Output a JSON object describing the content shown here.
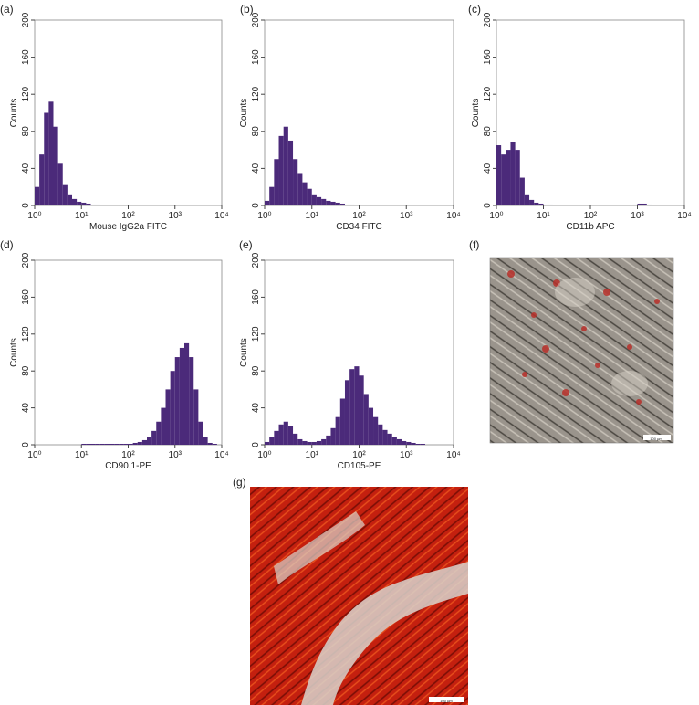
{
  "chart_data": [
    {
      "type": "histogram",
      "label": "(a)",
      "xlabel": "Mouse IgG2a FITC",
      "ylabel": "Counts",
      "color": "#4b2a7a",
      "xscale": "log",
      "xlim": [
        1,
        10000
      ],
      "ylim": [
        0,
        200
      ],
      "xticks": [
        {
          "value": 1,
          "label": "10⁰"
        },
        {
          "value": 10,
          "label": "10¹"
        },
        {
          "value": 100,
          "label": "10²"
        },
        {
          "value": 1000,
          "label": "10³"
        },
        {
          "value": 10000,
          "label": "10⁴"
        }
      ],
      "yticks": [
        0,
        40,
        80,
        120,
        160,
        200
      ],
      "bins": [
        1,
        1.259,
        1.585,
        1.995,
        2.512,
        3.162,
        3.981,
        5.012,
        6.31,
        7.943,
        10,
        12.59,
        15.85,
        19.95,
        25.12,
        31.62,
        39.81,
        50.12,
        63.1,
        79.43,
        100,
        125.9,
        158.5,
        199.5,
        251.2,
        316.2,
        398.1,
        501.2,
        631,
        794.3,
        1000,
        1259,
        1585,
        1995,
        2512,
        3162,
        3981,
        5012,
        6310,
        7943,
        10000
      ],
      "values": [
        20,
        55,
        100,
        112,
        85,
        45,
        22,
        12,
        7,
        4,
        3,
        2,
        1,
        1,
        0,
        0,
        0,
        0,
        0,
        0,
        0,
        0,
        0,
        0,
        0,
        0,
        0,
        0,
        0,
        0,
        0,
        0,
        0,
        0,
        0,
        0,
        0,
        0,
        0,
        0
      ]
    },
    {
      "type": "histogram",
      "label": "(b)",
      "xlabel": "CD34 FITC",
      "ylabel": "Counts",
      "color": "#4b2a7a",
      "xscale": "log",
      "xlim": [
        1,
        10000
      ],
      "ylim": [
        0,
        200
      ],
      "xticks": [
        {
          "value": 1,
          "label": "10⁰"
        },
        {
          "value": 10,
          "label": "10¹"
        },
        {
          "value": 100,
          "label": "10²"
        },
        {
          "value": 1000,
          "label": "10³"
        },
        {
          "value": 10000,
          "label": "10⁴"
        }
      ],
      "yticks": [
        0,
        40,
        80,
        120,
        160,
        200
      ],
      "bins": [
        1,
        1.259,
        1.585,
        1.995,
        2.512,
        3.162,
        3.981,
        5.012,
        6.31,
        7.943,
        10,
        12.59,
        15.85,
        19.95,
        25.12,
        31.62,
        39.81,
        50.12,
        63.1,
        79.43,
        100,
        125.9,
        158.5,
        199.5,
        251.2,
        316.2,
        398.1,
        501.2,
        631,
        794.3,
        1000,
        1259,
        1585,
        1995,
        2512,
        3162,
        3981,
        5012,
        6310,
        7943,
        10000
      ],
      "values": [
        5,
        20,
        50,
        75,
        85,
        70,
        50,
        35,
        25,
        18,
        12,
        9,
        7,
        5,
        4,
        3,
        2,
        1,
        1,
        0,
        0,
        0,
        0,
        0,
        0,
        0,
        0,
        0,
        0,
        0,
        0,
        0,
        0,
        0,
        0,
        0,
        0,
        0,
        0,
        0
      ]
    },
    {
      "type": "histogram",
      "label": "(c)",
      "xlabel": "CD11b APC",
      "ylabel": "Counts",
      "color": "#4b2a7a",
      "xscale": "log",
      "xlim": [
        1,
        10000
      ],
      "ylim": [
        0,
        200
      ],
      "xticks": [
        {
          "value": 1,
          "label": "10⁰"
        },
        {
          "value": 10,
          "label": "10¹"
        },
        {
          "value": 100,
          "label": "10²"
        },
        {
          "value": 1000,
          "label": "10³"
        },
        {
          "value": 10000,
          "label": "10⁴"
        }
      ],
      "yticks": [
        0,
        40,
        80,
        120,
        160,
        200
      ],
      "bins": [
        1,
        1.259,
        1.585,
        1.995,
        2.512,
        3.162,
        3.981,
        5.012,
        6.31,
        7.943,
        10,
        12.59,
        15.85,
        19.95,
        25.12,
        31.62,
        39.81,
        50.12,
        63.1,
        79.43,
        100,
        125.9,
        158.5,
        199.5,
        251.2,
        316.2,
        398.1,
        501.2,
        631,
        794.3,
        1000,
        1259,
        1585,
        1995,
        2512,
        3162,
        3981,
        5012,
        6310,
        7943,
        10000
      ],
      "values": [
        65,
        55,
        60,
        68,
        60,
        30,
        12,
        6,
        3,
        2,
        1,
        1,
        0,
        0,
        0,
        0,
        0,
        0,
        0,
        0,
        0,
        0,
        0,
        0,
        0,
        0,
        0,
        0,
        0,
        1,
        2,
        2,
        1,
        0,
        0,
        0,
        0,
        0,
        0,
        0
      ]
    },
    {
      "type": "histogram",
      "label": "(d)",
      "xlabel": "CD90.1-PE",
      "ylabel": "Counts",
      "color": "#4b2a7a",
      "xscale": "log",
      "xlim": [
        1,
        10000
      ],
      "ylim": [
        0,
        200
      ],
      "xticks": [
        {
          "value": 1,
          "label": "10⁰"
        },
        {
          "value": 10,
          "label": "10¹"
        },
        {
          "value": 100,
          "label": "10²"
        },
        {
          "value": 1000,
          "label": "10³"
        },
        {
          "value": 10000,
          "label": "10⁴"
        }
      ],
      "yticks": [
        0,
        40,
        80,
        120,
        160,
        200
      ],
      "bins": [
        1,
        1.259,
        1.585,
        1.995,
        2.512,
        3.162,
        3.981,
        5.012,
        6.31,
        7.943,
        10,
        12.59,
        15.85,
        19.95,
        25.12,
        31.62,
        39.81,
        50.12,
        63.1,
        79.43,
        100,
        125.9,
        158.5,
        199.5,
        251.2,
        316.2,
        398.1,
        501.2,
        631,
        794.3,
        1000,
        1259,
        1585,
        1995,
        2512,
        3162,
        3981,
        5012,
        6310,
        7943,
        10000
      ],
      "values": [
        0,
        0,
        0,
        0,
        0,
        0,
        0,
        0,
        0,
        0,
        1,
        1,
        1,
        1,
        1,
        1,
        1,
        1,
        1,
        1,
        1,
        2,
        3,
        5,
        8,
        15,
        25,
        40,
        60,
        80,
        95,
        105,
        110,
        95,
        60,
        25,
        8,
        2,
        1,
        0
      ]
    },
    {
      "type": "histogram",
      "label": "(e)",
      "xlabel": "CD105-PE",
      "ylabel": "Counts",
      "color": "#4b2a7a",
      "xscale": "log",
      "xlim": [
        1,
        10000
      ],
      "ylim": [
        0,
        200
      ],
      "xticks": [
        {
          "value": 1,
          "label": "10⁰"
        },
        {
          "value": 10,
          "label": "10¹"
        },
        {
          "value": 100,
          "label": "10²"
        },
        {
          "value": 1000,
          "label": "10³"
        },
        {
          "value": 10000,
          "label": "10⁴"
        }
      ],
      "yticks": [
        0,
        40,
        80,
        120,
        160,
        200
      ],
      "bins": [
        1,
        1.259,
        1.585,
        1.995,
        2.512,
        3.162,
        3.981,
        5.012,
        6.31,
        7.943,
        10,
        12.59,
        15.85,
        19.95,
        25.12,
        31.62,
        39.81,
        50.12,
        63.1,
        79.43,
        100,
        125.9,
        158.5,
        199.5,
        251.2,
        316.2,
        398.1,
        501.2,
        631,
        794.3,
        1000,
        1259,
        1585,
        1995,
        2512,
        3162,
        3981,
        5012,
        6310,
        7943,
        10000
      ],
      "values": [
        3,
        8,
        15,
        22,
        25,
        20,
        12,
        6,
        4,
        3,
        3,
        4,
        6,
        10,
        18,
        30,
        50,
        70,
        82,
        85,
        75,
        55,
        40,
        30,
        22,
        16,
        12,
        8,
        6,
        4,
        3,
        2,
        1,
        1,
        0,
        0,
        0,
        0,
        0,
        0
      ]
    }
  ],
  "images": [
    {
      "label": "(f)",
      "scale_bar": "100 µm"
    },
    {
      "label": "(g)",
      "scale_bar": "100 µm"
    }
  ]
}
